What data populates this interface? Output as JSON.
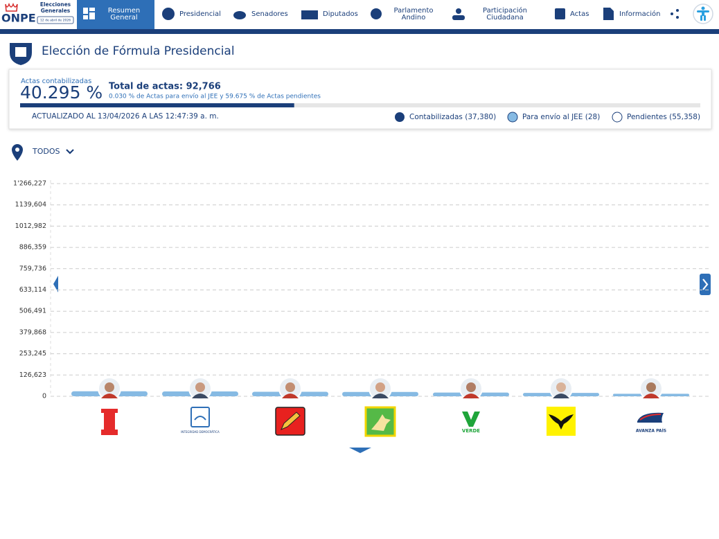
{
  "brand": {
    "logo": "ONPE",
    "lines": [
      "Elecciones",
      "Generales"
    ],
    "date": "12 de abril de 2026"
  },
  "nav": [
    {
      "lines": [
        "Resumen",
        "General"
      ]
    },
    {
      "lines": [
        "Presidencial"
      ]
    },
    {
      "lines": [
        "Senadores"
      ]
    },
    {
      "lines": [
        "Diputados"
      ]
    },
    {
      "lines": [
        "Parlamento",
        "Andino"
      ]
    },
    {
      "lines": [
        "Participación",
        "Ciudadana"
      ]
    },
    {
      "lines": [
        "Actas"
      ]
    },
    {
      "lines": [
        "Información"
      ]
    }
  ],
  "title": "Elección de Fórmula Presidencial",
  "summary": {
    "caption": "Actas contabilizadas",
    "progress": {
      "value": 40.295,
      "label": "40.295 %"
    },
    "total": "Total de actas: 92,766",
    "detail": "0.030 % de Actas para envío al JEE y 59.675 % de Actas pendientes",
    "updated": "ACTUALIZADO AL 13/04/2026 A LAS 12:47:39 a. m.",
    "legend": [
      "Contabilizadas (37,380)",
      "Para envío al JEE (28)",
      "Pendientes (55,358)"
    ]
  },
  "filter": "TODOS",
  "logo_texts": [
    "INTEGRIDAD DEMOCRÁTICA",
    "VERDE",
    "AVANZA PAÍS"
  ],
  "chart_data": {
    "type": "bar",
    "categories": [
      null,
      null,
      null,
      null,
      null,
      null,
      null
    ],
    "values": [
      30000,
      29000,
      27000,
      26000,
      22000,
      20000,
      15000
    ],
    "color": "#86bae3",
    "ylim": [
      0,
      1266227
    ],
    "yticks": [
      0,
      {
        "value": 126623,
        "label": "126,623"
      },
      {
        "value": 253245,
        "label": "253,245"
      },
      {
        "value": 379868,
        "label": "379,868"
      },
      {
        "value": 506491,
        "label": "506,491"
      },
      {
        "value": 633114,
        "label": "633,114"
      },
      {
        "value": 759736,
        "label": "759,736"
      },
      {
        "value": 886359,
        "label": "886,359"
      },
      {
        "value": 1012982,
        "label": "1012,982"
      },
      {
        "value": 1139604,
        "label": "1139,604"
      },
      {
        "value": 1266227,
        "label": "1'266,227"
      }
    ],
    "grid": true
  }
}
